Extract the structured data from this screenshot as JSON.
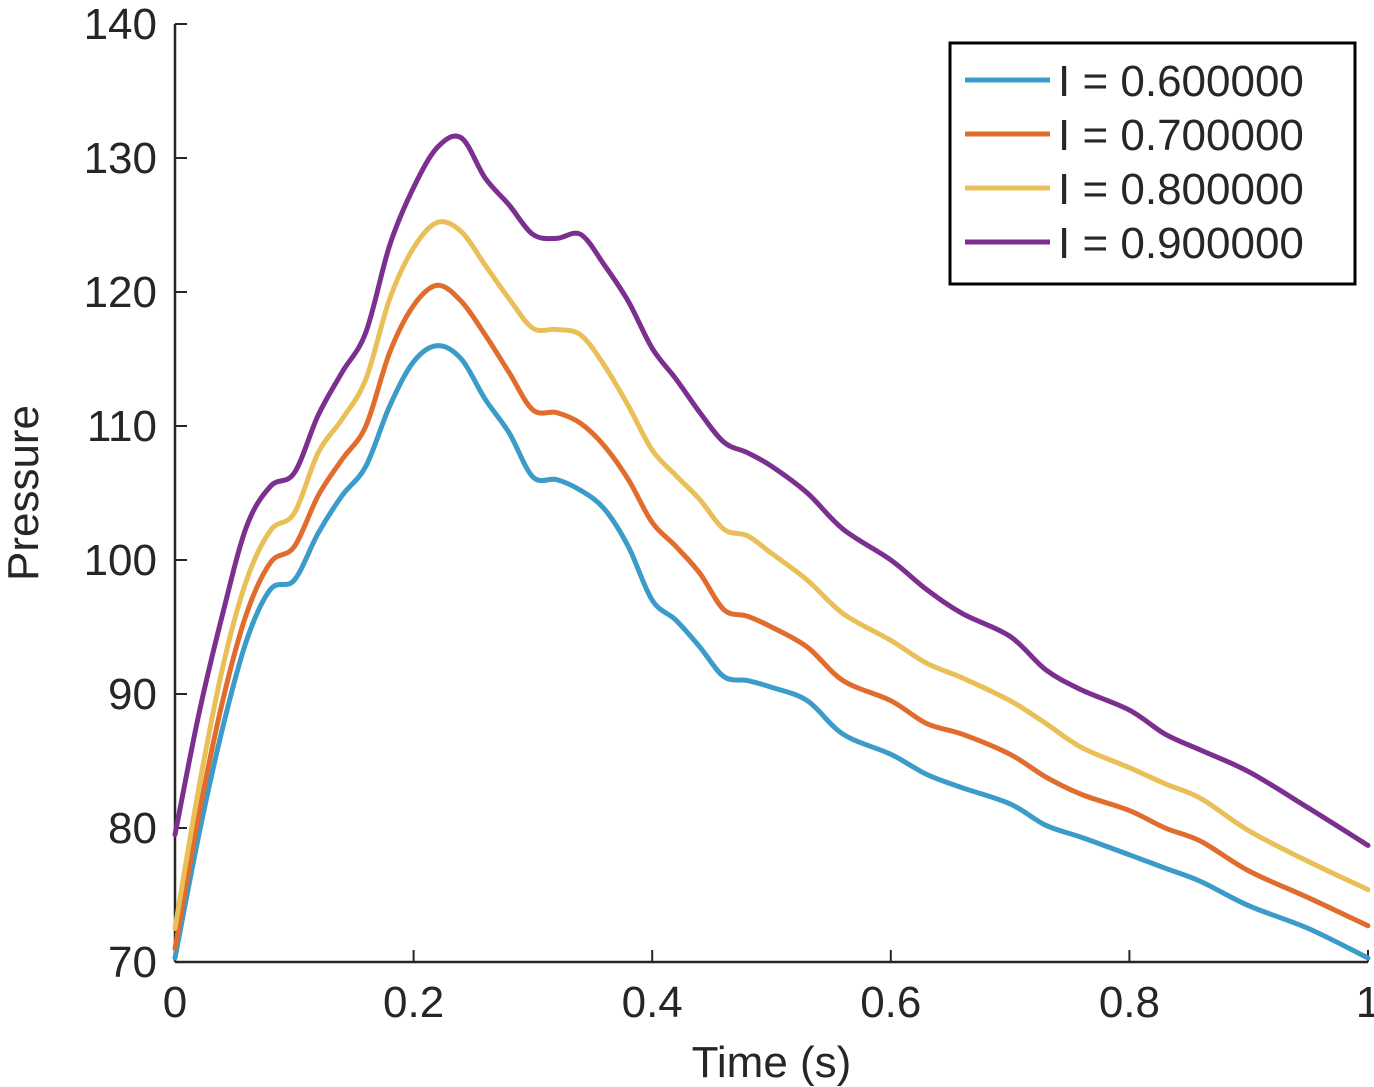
{
  "chart_data": {
    "type": "line",
    "title": "",
    "xlabel": "Time (s)",
    "ylabel": "Pressure",
    "xlim": [
      0,
      1
    ],
    "ylim": [
      70,
      140
    ],
    "xticks": [
      0,
      0.2,
      0.4,
      0.6,
      0.8,
      1
    ],
    "xtick_labels": [
      "0",
      "0.2",
      "0.4",
      "0.6",
      "0.8",
      "1"
    ],
    "yticks": [
      70,
      80,
      90,
      100,
      110,
      120,
      130,
      140
    ],
    "ytick_labels": [
      "70",
      "80",
      "90",
      "100",
      "110",
      "120",
      "130",
      "140"
    ],
    "grid": false,
    "legend_position": "top-right",
    "x": [
      0,
      0.02,
      0.04,
      0.06,
      0.08,
      0.1,
      0.12,
      0.14,
      0.16,
      0.18,
      0.2,
      0.22,
      0.24,
      0.26,
      0.28,
      0.3,
      0.32,
      0.34,
      0.36,
      0.38,
      0.4,
      0.42,
      0.44,
      0.46,
      0.48,
      0.5,
      0.53,
      0.56,
      0.6,
      0.63,
      0.66,
      0.7,
      0.73,
      0.76,
      0.8,
      0.83,
      0.86,
      0.9,
      0.95,
      1.0
    ],
    "series": [
      {
        "name": "I = 0.600000",
        "color": "#3B9BC9",
        "values": [
          70.3,
          79.5,
          87.5,
          94.0,
          97.8,
          98.5,
          102.0,
          104.8,
          107.0,
          111.5,
          114.8,
          116.0,
          115.0,
          112.0,
          109.5,
          106.2,
          106.0,
          105.2,
          103.8,
          101.0,
          97.0,
          95.5,
          93.5,
          91.3,
          91.0,
          90.5,
          89.5,
          87.0,
          85.5,
          84.0,
          83.0,
          81.8,
          80.2,
          79.3,
          78.0,
          77.0,
          76.0,
          74.2,
          72.5,
          70.3
        ]
      },
      {
        "name": "I = 0.700000",
        "color": "#E06C2E",
        "values": [
          71.0,
          81.0,
          89.5,
          96.0,
          99.8,
          101.0,
          104.8,
          107.5,
          110.0,
          115.5,
          119.0,
          120.5,
          119.3,
          116.8,
          114.0,
          111.2,
          111.0,
          110.2,
          108.5,
          106.0,
          102.8,
          101.0,
          99.0,
          96.3,
          95.8,
          95.0,
          93.5,
          91.0,
          89.5,
          87.8,
          87.0,
          85.5,
          83.8,
          82.5,
          81.3,
          80.0,
          79.0,
          76.8,
          74.8,
          72.7
        ]
      },
      {
        "name": "I = 0.800000",
        "color": "#E9C058",
        "values": [
          72.5,
          83.0,
          92.0,
          98.5,
          102.2,
          103.5,
          108.0,
          110.5,
          113.5,
          119.5,
          123.3,
          125.2,
          124.5,
          122.0,
          119.5,
          117.3,
          117.2,
          116.8,
          114.5,
          111.5,
          108.2,
          106.3,
          104.5,
          102.3,
          101.8,
          100.5,
          98.5,
          96.0,
          94.0,
          92.3,
          91.2,
          89.5,
          87.8,
          86.0,
          84.5,
          83.3,
          82.2,
          79.8,
          77.5,
          75.4
        ]
      },
      {
        "name": "I = 0.900000",
        "color": "#7B2F8E",
        "values": [
          79.5,
          88.5,
          96.0,
          102.5,
          105.5,
          106.5,
          110.8,
          114.0,
          117.0,
          123.5,
          127.8,
          130.8,
          131.5,
          128.5,
          126.5,
          124.3,
          124.0,
          124.3,
          122.0,
          119.3,
          115.8,
          113.5,
          111.0,
          108.8,
          108.0,
          107.0,
          105.0,
          102.3,
          100.0,
          97.8,
          96.0,
          94.3,
          91.8,
          90.3,
          88.8,
          87.0,
          85.8,
          84.2,
          81.5,
          78.7
        ]
      }
    ]
  }
}
